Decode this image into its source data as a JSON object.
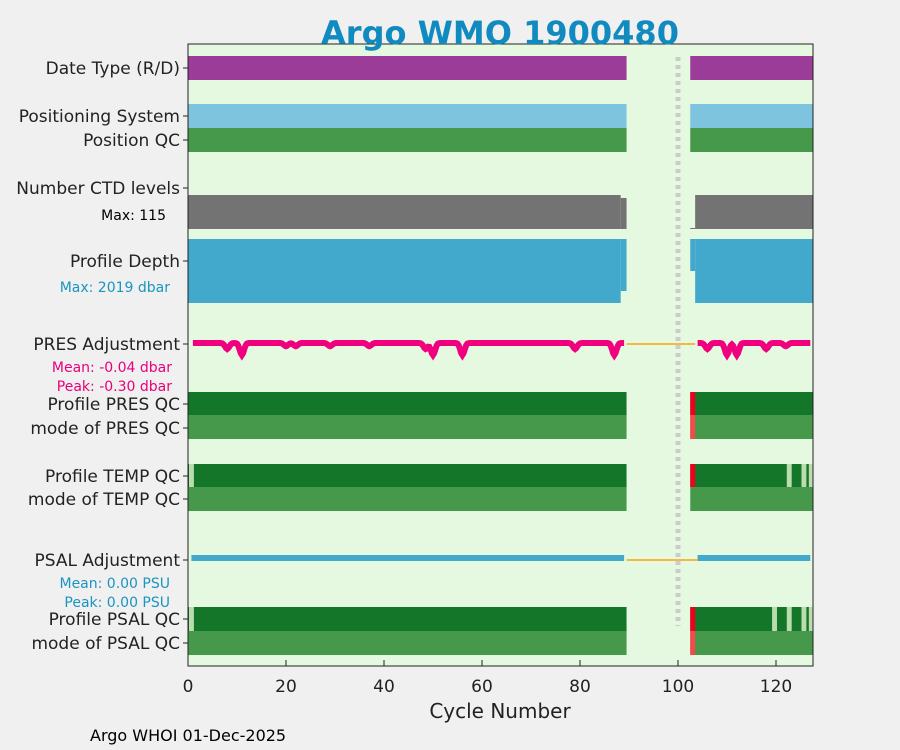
{
  "chart_data": {
    "type": "bar",
    "title": "Argo WMO 1900480",
    "xlabel": "Cycle Number",
    "xlim": [
      0,
      127.5
    ],
    "xticks": [
      "0",
      "20",
      "40",
      "60",
      "80",
      "100",
      "120"
    ],
    "footer": "Argo WHOI 01-Dec-2025",
    "ylabels": [
      {
        "text": "Date Type (R/D)",
        "color": "#222222"
      },
      {
        "text": "Positioning System",
        "color": "#222222"
      },
      {
        "text": "Position QC",
        "color": "#222222"
      },
      {
        "text": "Number CTD levels",
        "color": "#222222"
      },
      {
        "text": "Max: 115",
        "color": "#000000"
      },
      {
        "text": "Profile Depth",
        "color": "#222222"
      },
      {
        "text": "Max: 2019 dbar",
        "color": "#1a95c0"
      },
      {
        "text": "PRES Adjustment",
        "color": "#222222"
      },
      {
        "text": "Mean: -0.04 dbar",
        "color": "#e8007a"
      },
      {
        "text": "Peak: -0.30 dbar",
        "color": "#e8007a"
      },
      {
        "text": "Profile PRES QC",
        "color": "#222222"
      },
      {
        "text": "mode of PRES QC",
        "color": "#222222"
      },
      {
        "text": "Profile TEMP QC",
        "color": "#222222"
      },
      {
        "text": "mode of TEMP QC",
        "color": "#222222"
      },
      {
        "text": "PSAL Adjustment",
        "color": "#222222"
      },
      {
        "text": "Mean: 0.00 PSU",
        "color": "#1a95c0"
      },
      {
        "text": "Peak: 0.00 PSU",
        "color": "#1a95c0"
      },
      {
        "text": "Profile PSAL QC",
        "color": "#222222"
      },
      {
        "text": "mode of PSAL QC",
        "color": "#222222"
      }
    ],
    "segments": [
      [
        0,
        89.5
      ],
      [
        102.5,
        127.5
      ]
    ],
    "missing_cycle_marker": 100,
    "colors": {
      "date_type": "#9a3c98",
      "positioning": "#7ec4de",
      "good_qc": "#46994a",
      "profile_qc_good": "#137629",
      "ctd": "#737373",
      "depth": "#43a9cc",
      "pres_adj": "#f0007f",
      "interp": "#f4b942",
      "psal_adj": "#43a9cc",
      "bad_qc": "#f0001f",
      "bad_mode": "#f44a4a",
      "probable": "#bcdcb0",
      "background": "#e5f8e0"
    },
    "pres_adjustment_dips": [
      {
        "cycle": 8,
        "value": -0.15
      },
      {
        "cycle": 11,
        "value": -0.3
      },
      {
        "cycle": 20,
        "value": -0.08
      },
      {
        "cycle": 22,
        "value": -0.08
      },
      {
        "cycle": 29,
        "value": -0.08
      },
      {
        "cycle": 37,
        "value": -0.08
      },
      {
        "cycle": 48.5,
        "value": -0.15
      },
      {
        "cycle": 50,
        "value": -0.3
      },
      {
        "cycle": 56,
        "value": -0.3
      },
      {
        "cycle": 79,
        "value": -0.15
      },
      {
        "cycle": 87,
        "value": -0.3
      },
      {
        "cycle": 106,
        "value": -0.15
      },
      {
        "cycle": 110,
        "value": -0.3
      },
      {
        "cycle": 112,
        "value": -0.3
      },
      {
        "cycle": 118,
        "value": -0.15
      },
      {
        "cycle": 122,
        "value": -0.08
      }
    ],
    "red_cycles": [
      103
    ],
    "temp_probable_cycles": [
      1,
      123,
      126,
      127.5
    ],
    "psal_probable_cycles": [
      1,
      120,
      123,
      126,
      127.5
    ]
  }
}
